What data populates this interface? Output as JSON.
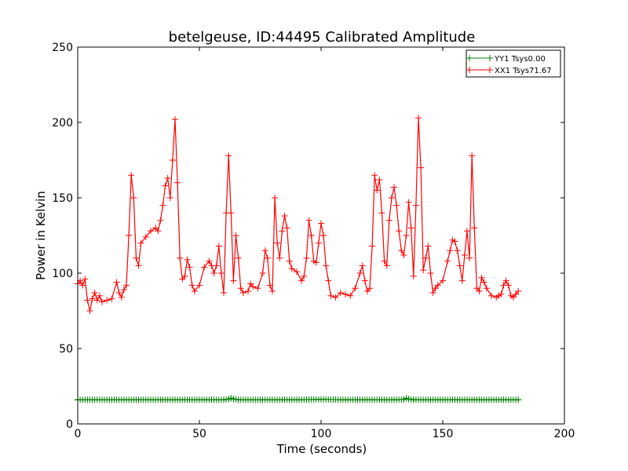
{
  "chart_data": {
    "type": "line",
    "title": "betelgeuse, ID:44495 Calibrated Amplitude",
    "xlabel": "Time (seconds)",
    "ylabel": "Power in Kelvin",
    "xlim": [
      0,
      200
    ],
    "ylim": [
      0,
      250
    ],
    "xticks": [
      "0",
      "50",
      "100",
      "150",
      "200"
    ],
    "yticks": [
      "0",
      "50",
      "100",
      "150",
      "200",
      "250"
    ],
    "grid": false,
    "legend_position": "top-right",
    "marker": "plus",
    "series": [
      {
        "name": "YY1 Tsys0.00",
        "color": "#008000",
        "x": [
          0,
          10,
          20,
          30,
          40,
          50,
          60,
          62,
          63,
          64,
          66,
          70,
          80,
          90,
          100,
          110,
          120,
          130,
          134,
          135,
          136,
          138,
          140,
          150,
          160,
          170,
          175,
          181
        ],
        "y": [
          16,
          16,
          16,
          16,
          16,
          16,
          16,
          16.5,
          17,
          16.5,
          16,
          16,
          16,
          16,
          16.3,
          16,
          16,
          16,
          16.2,
          17,
          16.5,
          16,
          16,
          16,
          16,
          16,
          16,
          16
        ]
      },
      {
        "name": "XX1 Tsys71.67",
        "color": "#ff0000",
        "x": [
          0,
          1,
          2,
          3,
          4,
          5,
          6,
          7,
          8,
          9,
          10,
          12,
          14,
          16,
          17,
          18,
          19,
          20,
          21,
          22,
          23,
          24,
          25,
          26,
          28,
          30,
          32,
          33,
          34,
          35,
          36,
          37,
          38,
          39,
          40,
          41,
          42,
          43,
          44,
          45,
          46,
          47,
          48,
          50,
          52,
          54,
          55,
          56,
          57,
          58,
          59,
          60,
          61,
          62,
          63,
          64,
          65,
          66,
          67,
          68,
          70,
          71,
          72,
          74,
          76,
          77,
          78,
          79,
          80,
          81,
          82,
          83,
          84,
          85,
          86,
          87,
          88,
          90,
          92,
          93,
          94,
          95,
          96,
          97,
          98,
          99,
          100,
          101,
          102,
          103,
          104,
          106,
          108,
          110,
          112,
          114,
          116,
          117,
          118,
          119,
          120,
          121,
          122,
          123,
          124,
          125,
          126,
          127,
          128,
          129,
          130,
          131,
          132,
          133,
          134,
          135,
          136,
          137,
          138,
          139,
          140,
          141,
          142,
          143,
          144,
          145,
          146,
          147,
          148,
          150,
          152,
          153,
          154,
          155,
          156,
          157,
          158,
          159,
          160,
          161,
          162,
          163,
          164,
          165,
          166,
          167,
          168,
          170,
          172,
          173,
          174,
          175,
          176,
          177,
          178,
          179,
          180,
          181
        ],
        "y": [
          93,
          95,
          92,
          96,
          82,
          75,
          83,
          87,
          82,
          85,
          81,
          82,
          83,
          94,
          87,
          84,
          89,
          92,
          125,
          165,
          150,
          110,
          105,
          120,
          124,
          128,
          130,
          128,
          135,
          145,
          158,
          163,
          150,
          175,
          202,
          160,
          110,
          96,
          98,
          109,
          104,
          92,
          88,
          92,
          104,
          108,
          105,
          100,
          105,
          118,
          100,
          87,
          140,
          178,
          140,
          95,
          125,
          110,
          90,
          87,
          88,
          93,
          91,
          90,
          100,
          115,
          110,
          92,
          88,
          150,
          120,
          110,
          128,
          138,
          130,
          108,
          103,
          101,
          95,
          98,
          110,
          135,
          125,
          108,
          107,
          120,
          133,
          125,
          105,
          95,
          85,
          84,
          87,
          86,
          85,
          90,
          100,
          105,
          95,
          88,
          90,
          118,
          165,
          155,
          162,
          140,
          108,
          105,
          135,
          150,
          157,
          145,
          128,
          115,
          112,
          125,
          147,
          130,
          98,
          145,
          203,
          170,
          102,
          110,
          118,
          100,
          87,
          90,
          92,
          95,
          108,
          115,
          122,
          121,
          115,
          105,
          95,
          112,
          128,
          110,
          178,
          130,
          90,
          88,
          97,
          94,
          90,
          85,
          84,
          85,
          86,
          92,
          95,
          92,
          85,
          84,
          86,
          88
        ]
      }
    ]
  }
}
